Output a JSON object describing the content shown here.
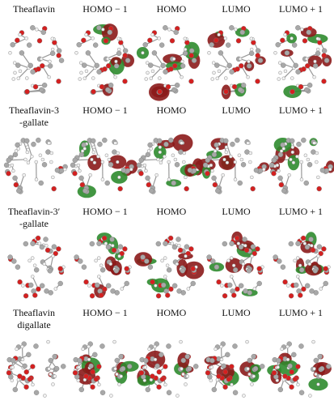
{
  "rows": [
    {
      "label": [
        "Theaflavin"
      ],
      "headers": [
        "HOMO − 1",
        "HOMO",
        "LUMO",
        "LUMO + 1"
      ]
    },
    {
      "label": [
        "Theaflavin-3",
        "-gallate"
      ],
      "headers": [
        "HOMO − 1",
        "HOMO",
        "LUMO",
        "LUMO + 1"
      ]
    },
    {
      "label": [
        "Theaflavin-3′",
        "-gallate"
      ],
      "headers": [
        "HOMO − 1",
        "HOMO",
        "LUMO",
        "LUMO + 1"
      ]
    },
    {
      "label": [
        "Theaflavin",
        "digallate"
      ],
      "headers": [
        "HOMO − 1",
        "HOMO",
        "LUMO",
        "LUMO + 1"
      ]
    }
  ]
}
